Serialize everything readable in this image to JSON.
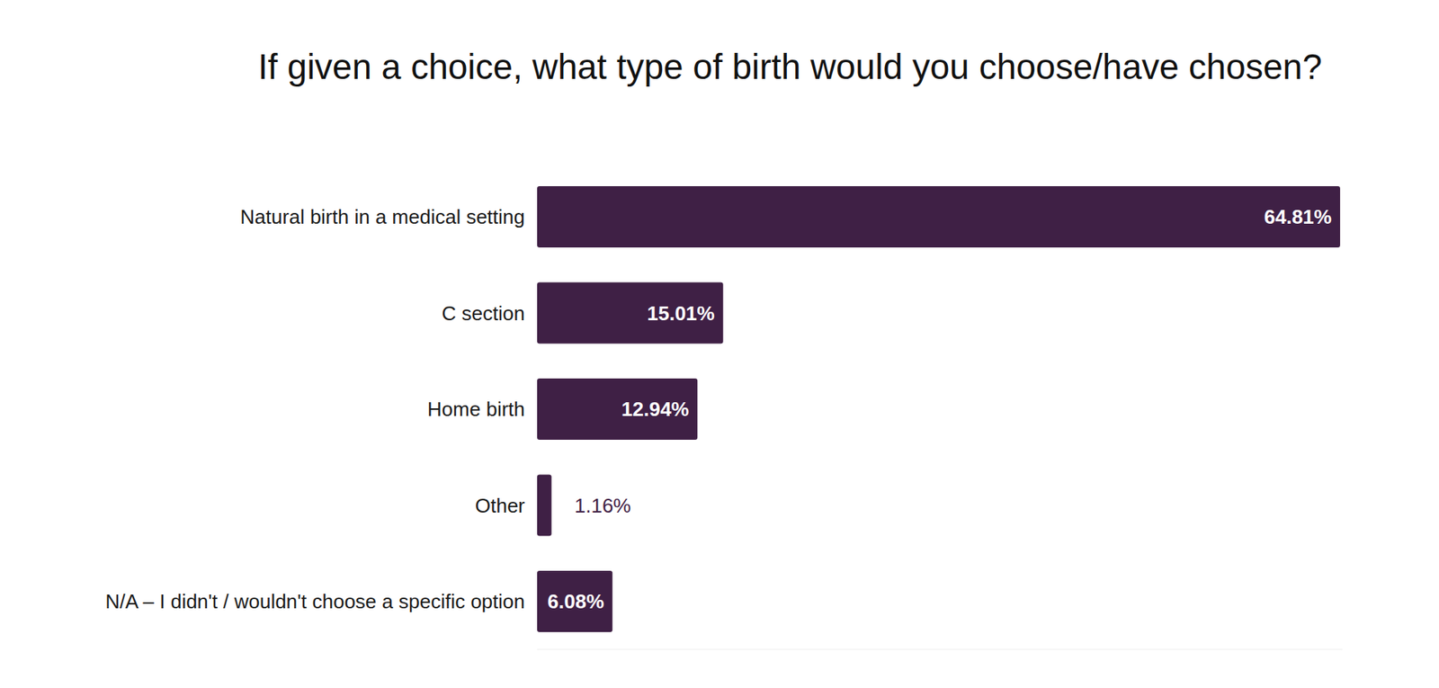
{
  "chart_data": {
    "type": "bar",
    "orientation": "horizontal",
    "title": "If given a choice, what type of birth would you choose/have chosen?",
    "categories": [
      "Natural birth in a medical setting",
      "C section",
      "Home birth",
      "Other",
      "N/A – I didn't / wouldn't choose a specific option"
    ],
    "values": [
      64.81,
      15.01,
      12.94,
      1.16,
      6.08
    ],
    "value_labels": [
      "64.81%",
      "15.01%",
      "12.94%",
      "1.16%",
      "6.08%"
    ],
    "color": "#3f2045",
    "xlim": [
      0,
      65
    ],
    "data_labels": true,
    "tick_labels": false,
    "grid": false
  }
}
